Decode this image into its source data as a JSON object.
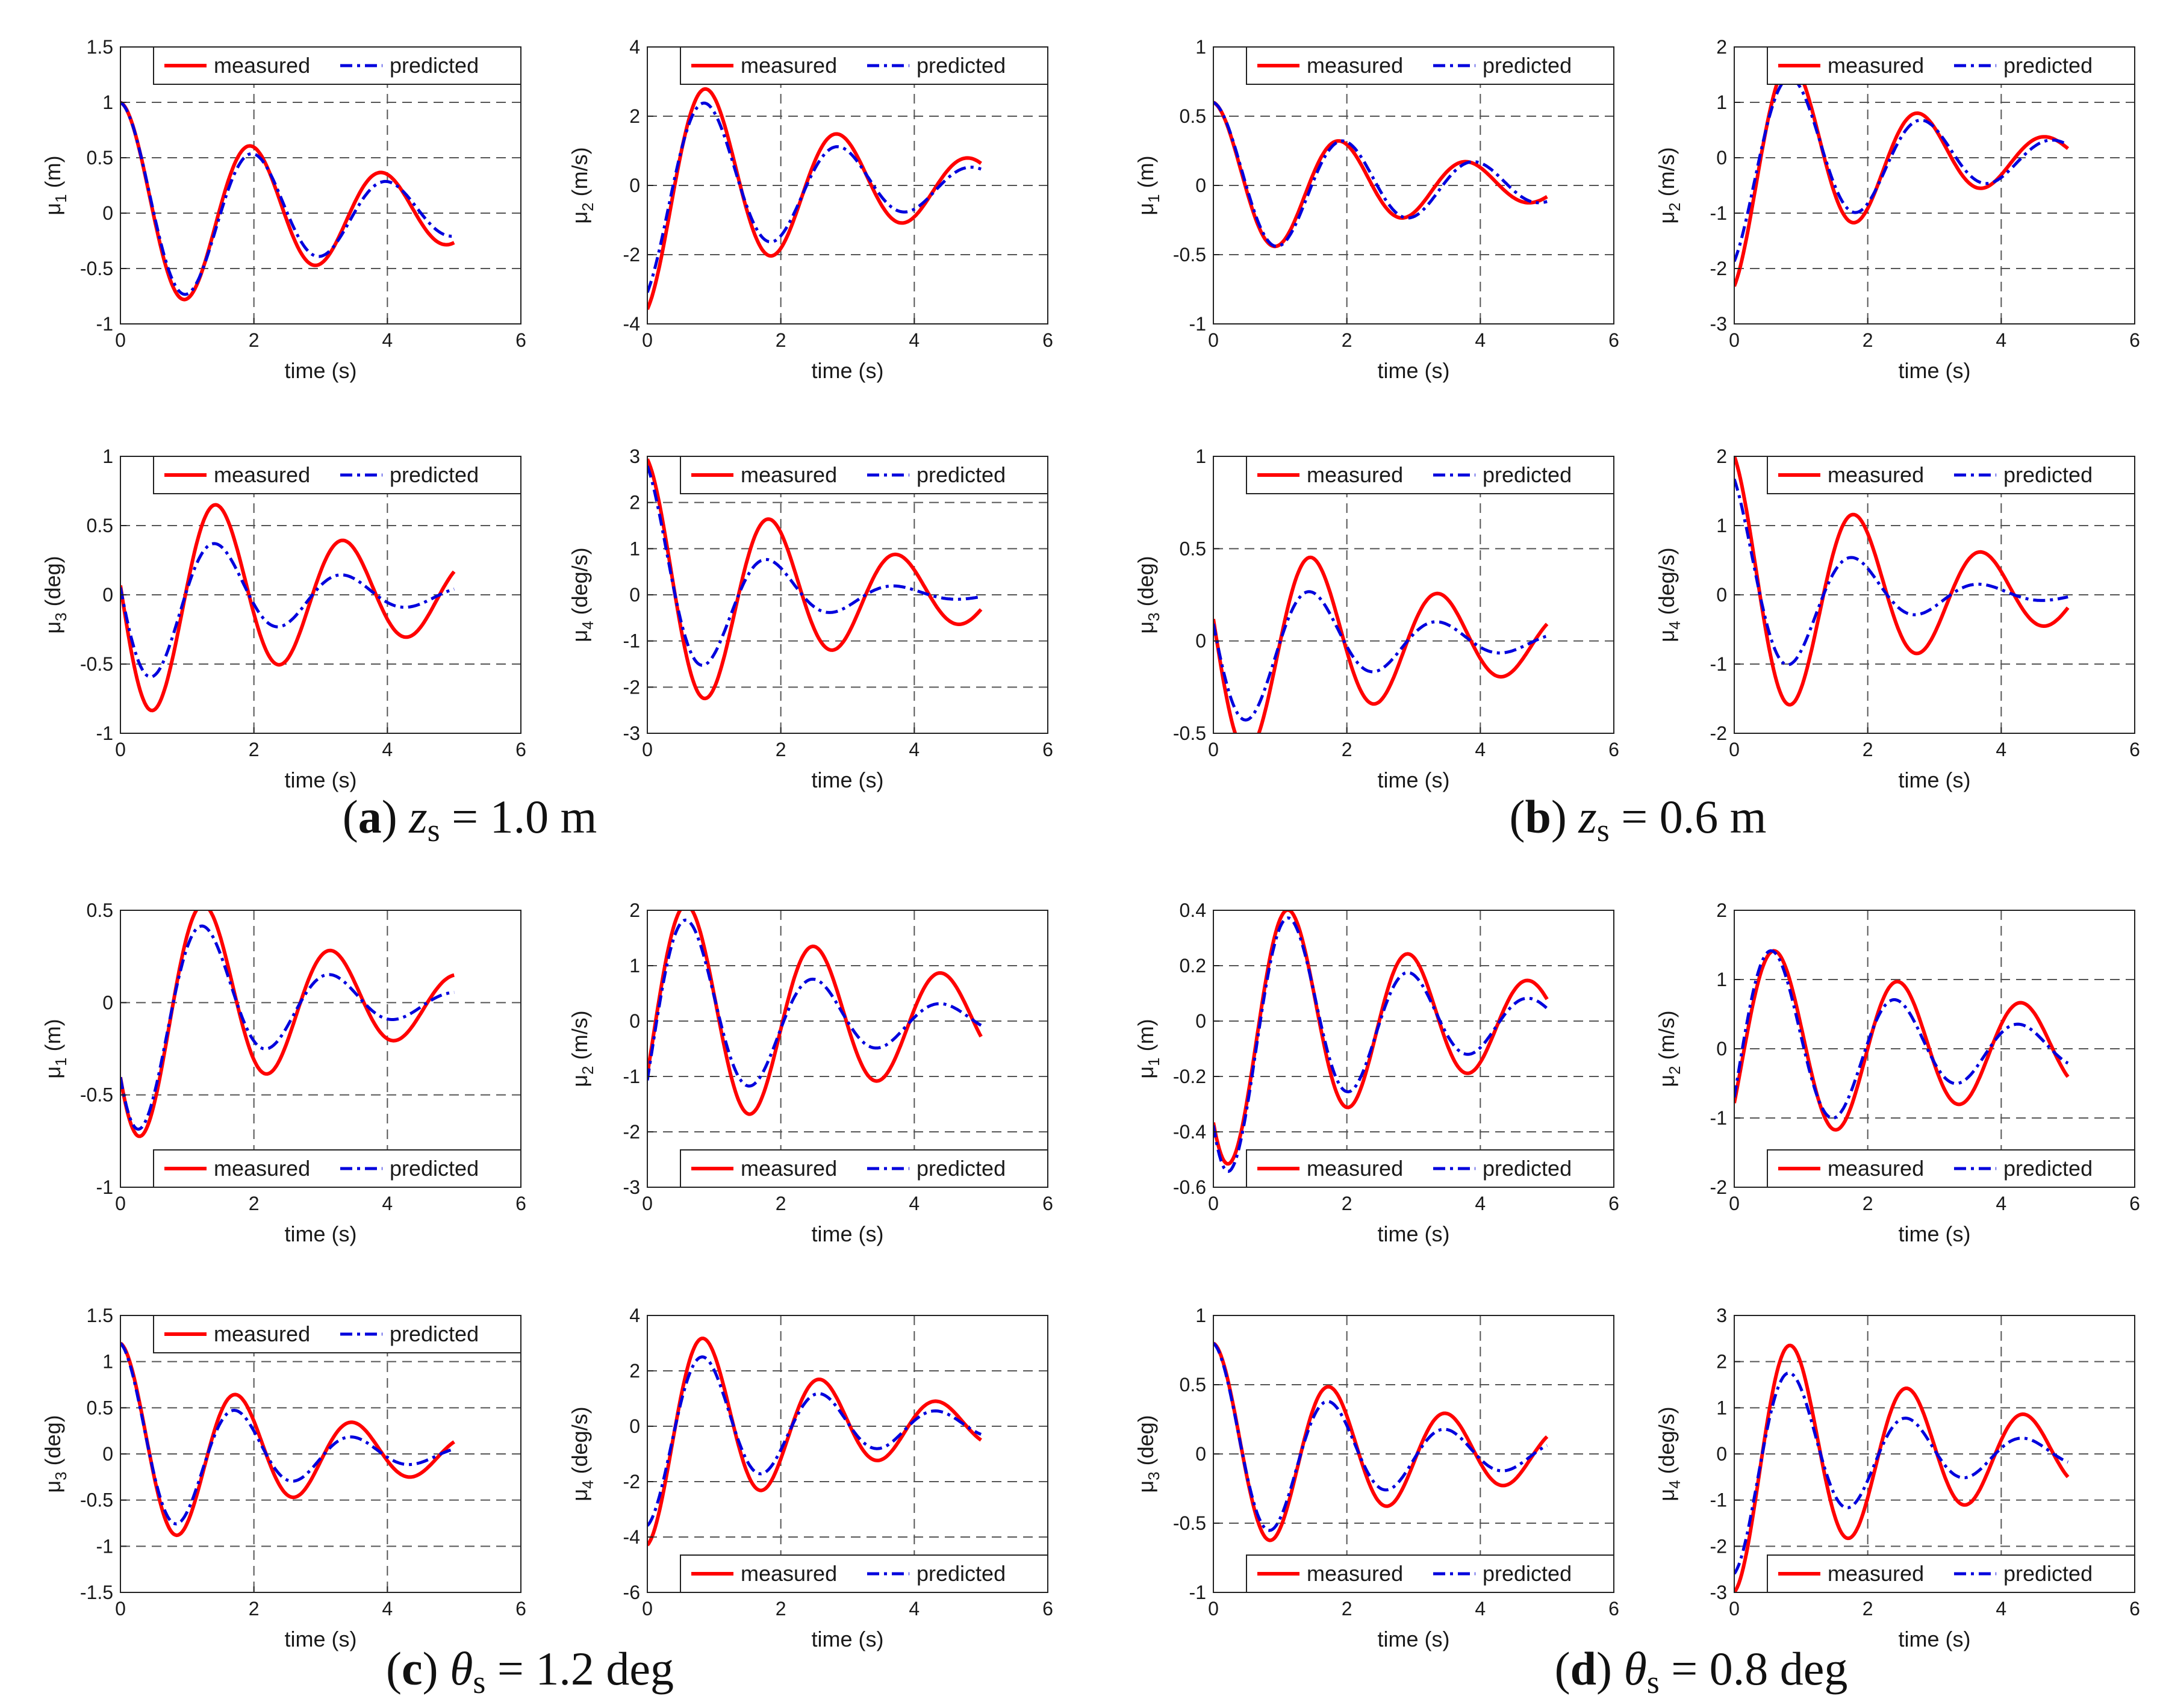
{
  "colors": {
    "measured": "#ff0000",
    "predicted": "#0000dd",
    "grid": "#555555",
    "axis": "#222222"
  },
  "legend": {
    "measured": "measured",
    "predicted": "predicted"
  },
  "captions": [
    {
      "id": "a",
      "letter": "a",
      "var": "z",
      "sub": "s",
      "rest": " = 1.0 m"
    },
    {
      "id": "b",
      "letter": "b",
      "var": "z",
      "sub": "s",
      "rest": " = 0.6 m"
    },
    {
      "id": "c",
      "letter": "c",
      "var": "θ",
      "sub": "s",
      "rest": " = 1.2 deg"
    },
    {
      "id": "d",
      "letter": "d",
      "var": "θ",
      "sub": "s",
      "rest": " = 0.8 deg"
    }
  ],
  "chart_data": [
    {
      "id": "a1",
      "group": "a",
      "type": "line",
      "xlabel": "time (s)",
      "ylabel_sym": "μ",
      "ylabel_sub": "1",
      "ylabel_unit": " (m)",
      "xlim": [
        0,
        6
      ],
      "ylim": [
        -1,
        1.5
      ],
      "xticks": [
        0,
        2,
        4,
        6
      ],
      "yticks": [
        -1,
        -0.5,
        0,
        0.5,
        1,
        1.5
      ],
      "legend_loc": "top",
      "grid": true,
      "series": [
        {
          "name": "measured",
          "A": 1.0,
          "zeta": 0.08,
          "omega": 3.2,
          "phase": 0,
          "offset": 0
        },
        {
          "name": "predicted",
          "A": 1.0,
          "zeta": 0.1,
          "omega": 3.14,
          "phase": 0,
          "offset": 0
        }
      ]
    },
    {
      "id": "a2",
      "group": "a",
      "type": "line",
      "xlabel": "time (s)",
      "ylabel_sym": "μ",
      "ylabel_sub": "2",
      "ylabel_unit": " (m/s)",
      "xlim": [
        0,
        6
      ],
      "ylim": [
        -4,
        4
      ],
      "xticks": [
        0,
        2,
        4,
        6
      ],
      "yticks": [
        -4,
        -2,
        0,
        2,
        4
      ],
      "legend_loc": "top",
      "grid": true,
      "series": [
        {
          "name": "measured",
          "A": 3.7,
          "zeta": 0.1,
          "omega": 3.2,
          "phase": 3.4,
          "offset": 0
        },
        {
          "name": "predicted",
          "A": 3.3,
          "zeta": 0.12,
          "omega": 3.14,
          "phase": 3.5,
          "offset": 0
        }
      ]
    },
    {
      "id": "a3",
      "group": "a",
      "type": "line",
      "xlabel": "time (s)",
      "ylabel_sym": "μ",
      "ylabel_sub": "3",
      "ylabel_unit": " (deg)",
      "xlim": [
        0,
        6
      ],
      "ylim": [
        -1,
        1
      ],
      "xticks": [
        0,
        2,
        4,
        6
      ],
      "yticks": [
        -1,
        -0.5,
        0,
        0.5,
        1
      ],
      "legend_loc": "top",
      "grid": true,
      "series": [
        {
          "name": "measured",
          "A": 0.95,
          "zeta": 0.08,
          "omega": 3.3,
          "phase": 1.5,
          "offset": 0
        },
        {
          "name": "predicted",
          "A": 0.75,
          "zeta": 0.15,
          "omega": 3.3,
          "phase": 1.5,
          "offset": 0
        }
      ]
    },
    {
      "id": "a4",
      "group": "a",
      "type": "line",
      "xlabel": "time (s)",
      "ylabel_sym": "μ",
      "ylabel_sub": "4",
      "ylabel_unit": " (deg/s)",
      "xlim": [
        0,
        6
      ],
      "ylim": [
        -3,
        3
      ],
      "xticks": [
        0,
        2,
        4,
        6
      ],
      "yticks": [
        -3,
        -2,
        -1,
        0,
        1,
        2,
        3
      ],
      "legend_loc": "top",
      "grid": true,
      "series": [
        {
          "name": "measured",
          "A": 3.0,
          "zeta": 0.1,
          "omega": 3.3,
          "phase": 0.2,
          "offset": 0
        },
        {
          "name": "predicted",
          "A": 2.85,
          "zeta": 0.22,
          "omega": 3.3,
          "phase": 0.2,
          "offset": 0
        }
      ]
    },
    {
      "id": "b1",
      "group": "b",
      "type": "line",
      "xlabel": "time (s)",
      "ylabel_sym": "μ",
      "ylabel_sub": "1",
      "ylabel_unit": " (m)",
      "xlim": [
        0,
        6
      ],
      "ylim": [
        -1,
        1
      ],
      "xticks": [
        0,
        2,
        4,
        6
      ],
      "yticks": [
        -1,
        -0.5,
        0,
        0.5,
        1
      ],
      "legend_loc": "top",
      "grid": true,
      "series": [
        {
          "name": "measured",
          "A": 0.6,
          "zeta": 0.1,
          "omega": 3.3,
          "phase": 0,
          "offset": 0
        },
        {
          "name": "predicted",
          "A": 0.6,
          "zeta": 0.1,
          "omega": 3.2,
          "phase": 0,
          "offset": 0
        }
      ]
    },
    {
      "id": "b2",
      "group": "b",
      "type": "line",
      "xlabel": "time (s)",
      "ylabel_sym": "μ",
      "ylabel_sub": "2",
      "ylabel_unit": " (m/s)",
      "xlim": [
        0,
        6
      ],
      "ylim": [
        -3,
        2
      ],
      "xticks": [
        0,
        2,
        4,
        6
      ],
      "yticks": [
        -3,
        -2,
        -1,
        0,
        1,
        2
      ],
      "legend_loc": "top",
      "grid": true,
      "series": [
        {
          "name": "measured",
          "A": 2.4,
          "zeta": 0.12,
          "omega": 3.3,
          "phase": 3.4,
          "offset": 0
        },
        {
          "name": "predicted",
          "A": 2.0,
          "zeta": 0.12,
          "omega": 3.2,
          "phase": 3.5,
          "offset": 0
        }
      ]
    },
    {
      "id": "b3",
      "group": "b",
      "type": "line",
      "xlabel": "time (s)",
      "ylabel_sym": "μ",
      "ylabel_sub": "3",
      "ylabel_unit": " (deg)",
      "xlim": [
        0,
        6
      ],
      "ylim": [
        -0.5,
        1
      ],
      "xticks": [
        0,
        2,
        4,
        6
      ],
      "yticks": [
        -0.5,
        0,
        0.5,
        1
      ],
      "legend_loc": "top",
      "grid": true,
      "series": [
        {
          "name": "measured",
          "A": 0.7,
          "zeta": 0.09,
          "omega": 3.3,
          "phase": 1.4,
          "offset": 0
        },
        {
          "name": "predicted",
          "A": 0.55,
          "zeta": 0.15,
          "omega": 3.3,
          "phase": 1.4,
          "offset": 0
        }
      ]
    },
    {
      "id": "b4",
      "group": "b",
      "type": "line",
      "xlabel": "time (s)",
      "ylabel_sym": "μ",
      "ylabel_sub": "4",
      "ylabel_unit": " (deg/s)",
      "xlim": [
        0,
        6
      ],
      "ylim": [
        -2,
        2
      ],
      "xticks": [
        0,
        2,
        4,
        6
      ],
      "yticks": [
        -2,
        -1,
        0,
        1,
        2
      ],
      "legend_loc": "top",
      "grid": true,
      "series": [
        {
          "name": "measured",
          "A": 2.1,
          "zeta": 0.1,
          "omega": 3.3,
          "phase": 0.3,
          "offset": 0
        },
        {
          "name": "predicted",
          "A": 1.75,
          "zeta": 0.2,
          "omega": 3.3,
          "phase": 0.3,
          "offset": 0
        }
      ]
    },
    {
      "id": "c1",
      "group": "c",
      "type": "line",
      "xlabel": "time (s)",
      "ylabel_sym": "μ",
      "ylabel_sub": "1",
      "ylabel_unit": " (m)",
      "xlim": [
        0,
        6
      ],
      "ylim": [
        -1,
        0.5
      ],
      "xticks": [
        0,
        2,
        4,
        6
      ],
      "yticks": [
        -1,
        -0.5,
        0,
        0.5
      ],
      "legend_loc": "bottom",
      "grid": true,
      "series": [
        {
          "name": "measured",
          "A": 0.8,
          "zeta": 0.1,
          "omega": 3.3,
          "phase": 2.1,
          "offset": 0
        },
        {
          "name": "predicted",
          "A": 0.8,
          "zeta": 0.16,
          "omega": 3.3,
          "phase": 2.1,
          "offset": 0
        }
      ]
    },
    {
      "id": "c2",
      "group": "c",
      "type": "line",
      "xlabel": "time (s)",
      "ylabel_sym": "μ",
      "ylabel_sub": "2",
      "ylabel_unit": " (m/s)",
      "xlim": [
        0,
        6
      ],
      "ylim": [
        -3,
        2
      ],
      "xticks": [
        0,
        2,
        4,
        6
      ],
      "yticks": [
        -3,
        -2,
        -1,
        0,
        1,
        2
      ],
      "legend_loc": "bottom",
      "grid": true,
      "series": [
        {
          "name": "measured",
          "A": 2.4,
          "zeta": 0.07,
          "omega": 3.3,
          "phase": 4.3,
          "offset": 0
        },
        {
          "name": "predicted",
          "A": 2.4,
          "zeta": 0.14,
          "omega": 3.3,
          "phase": 4.25,
          "offset": 0
        }
      ]
    },
    {
      "id": "c3",
      "group": "c",
      "type": "line",
      "xlabel": "time (s)",
      "ylabel_sym": "μ",
      "ylabel_sub": "3",
      "ylabel_unit": " (deg)",
      "xlim": [
        0,
        6
      ],
      "ylim": [
        -1.5,
        1.5
      ],
      "xticks": [
        0,
        2,
        4,
        6
      ],
      "yticks": [
        -1.5,
        -1,
        -0.5,
        0,
        0.5,
        1,
        1.5
      ],
      "legend_loc": "top",
      "grid": true,
      "series": [
        {
          "name": "measured",
          "A": 1.2,
          "zeta": 0.1,
          "omega": 3.6,
          "phase": 0,
          "offset": 0
        },
        {
          "name": "predicted",
          "A": 1.2,
          "zeta": 0.15,
          "omega": 3.6,
          "phase": 0,
          "offset": 0
        }
      ]
    },
    {
      "id": "c4",
      "group": "c",
      "type": "line",
      "xlabel": "time (s)",
      "ylabel_sym": "μ",
      "ylabel_sub": "4",
      "ylabel_unit": " (deg/s)",
      "xlim": [
        0,
        6
      ],
      "ylim": [
        -6,
        4
      ],
      "xticks": [
        0,
        2,
        4,
        6
      ],
      "yticks": [
        -6,
        -4,
        -2,
        0,
        2,
        4
      ],
      "legend_loc": "bottom",
      "grid": true,
      "series": [
        {
          "name": "measured",
          "A": 4.3,
          "zeta": 0.1,
          "omega": 3.6,
          "phase": 3.2,
          "offset": 0
        },
        {
          "name": "predicted",
          "A": 3.6,
          "zeta": 0.12,
          "omega": 3.6,
          "phase": 3.2,
          "offset": 0
        }
      ]
    },
    {
      "id": "d1",
      "group": "d",
      "type": "line",
      "xlabel": "time (s)",
      "ylabel_sym": "μ",
      "ylabel_sub": "1",
      "ylabel_unit": " (m)",
      "xlim": [
        0,
        6
      ],
      "ylim": [
        -0.6,
        0.4
      ],
      "xticks": [
        0,
        2,
        4,
        6
      ],
      "yticks": [
        -0.6,
        -0.4,
        -0.2,
        0,
        0.2,
        0.4
      ],
      "legend_loc": "bottom",
      "grid": true,
      "series": [
        {
          "name": "measured",
          "A": 0.55,
          "zeta": 0.08,
          "omega": 3.5,
          "phase": 2.3,
          "offset": 0
        },
        {
          "name": "predicted",
          "A": 0.6,
          "zeta": 0.12,
          "omega": 3.5,
          "phase": 2.25,
          "offset": 0
        }
      ]
    },
    {
      "id": "d2",
      "group": "d",
      "type": "line",
      "xlabel": "time (s)",
      "ylabel_sym": "μ",
      "ylabel_sub": "2",
      "ylabel_unit": " (m/s)",
      "xlim": [
        0,
        6
      ],
      "ylim": [
        -2,
        2
      ],
      "xticks": [
        0,
        2,
        4,
        6
      ],
      "yticks": [
        -2,
        -1,
        0,
        1,
        2
      ],
      "legend_loc": "bottom",
      "grid": true,
      "series": [
        {
          "name": "measured",
          "A": 1.6,
          "zeta": 0.06,
          "omega": 3.4,
          "phase": 4.2,
          "offset": 0
        },
        {
          "name": "predicted",
          "A": 1.75,
          "zeta": 0.11,
          "omega": 3.4,
          "phase": 4.3,
          "offset": 0
        }
      ]
    },
    {
      "id": "d3",
      "group": "d",
      "type": "line",
      "xlabel": "time (s)",
      "ylabel_sym": "μ",
      "ylabel_sub": "3",
      "ylabel_unit": " (deg)",
      "xlim": [
        0,
        6
      ],
      "ylim": [
        -1,
        1
      ],
      "xticks": [
        0,
        2,
        4,
        6
      ],
      "yticks": [
        -1,
        -0.5,
        0,
        0.5,
        1
      ],
      "legend_loc": "bottom",
      "grid": true,
      "series": [
        {
          "name": "measured",
          "A": 0.8,
          "zeta": 0.08,
          "omega": 3.6,
          "phase": 0,
          "offset": 0
        },
        {
          "name": "predicted",
          "A": 0.8,
          "zeta": 0.12,
          "omega": 3.6,
          "phase": 0,
          "offset": 0
        }
      ]
    },
    {
      "id": "d4",
      "group": "d",
      "type": "line",
      "xlabel": "time (s)",
      "ylabel_sym": "μ",
      "ylabel_sub": "4",
      "ylabel_unit": " (deg/s)",
      "xlim": [
        0,
        6
      ],
      "ylim": [
        -3,
        3
      ],
      "xticks": [
        0,
        2,
        4,
        6
      ],
      "yticks": [
        -3,
        -2,
        -1,
        0,
        1,
        2,
        3
      ],
      "legend_loc": "bottom",
      "grid": true,
      "series": [
        {
          "name": "measured",
          "A": 3.0,
          "zeta": 0.08,
          "omega": 3.6,
          "phase": 3.2,
          "offset": 0
        },
        {
          "name": "predicted",
          "A": 2.6,
          "zeta": 0.13,
          "omega": 3.6,
          "phase": 3.2,
          "offset": 0
        }
      ]
    }
  ]
}
